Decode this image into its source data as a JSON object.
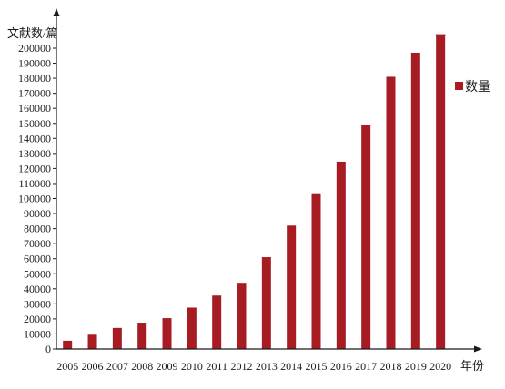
{
  "chart_data": {
    "type": "bar",
    "ylabel": "文献数/篇",
    "xlabel": "年份",
    "categories": [
      "2005",
      "2006",
      "2007",
      "2008",
      "2009",
      "2010",
      "2011",
      "2012",
      "2013",
      "2014",
      "2015",
      "2016",
      "2017",
      "2018",
      "2019",
      "2020"
    ],
    "series": [
      {
        "name": "数量",
        "values": [
          5500,
          9500,
          14000,
          17500,
          20500,
          27500,
          35500,
          44000,
          61000,
          82000,
          103500,
          124500,
          149000,
          181000,
          197000,
          208500
        ]
      }
    ],
    "projected_top_2020": 209000,
    "ylim": [
      0,
      200000
    ],
    "ytick_step": 10000,
    "legend_position": "right",
    "grid": false,
    "bar_color": "#a61c22"
  }
}
